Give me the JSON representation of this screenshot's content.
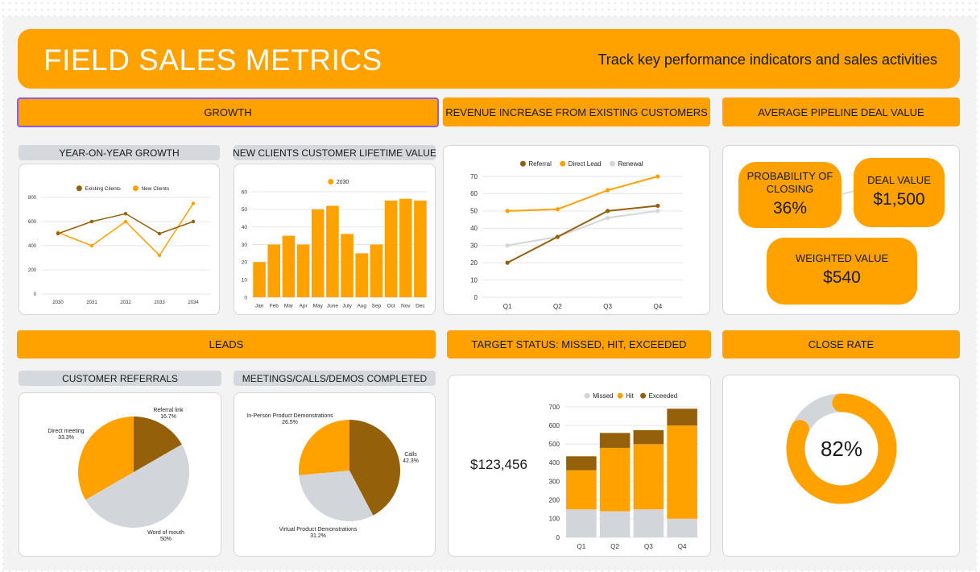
{
  "banner": {
    "title": "FIELD SALES METRICS",
    "subtitle": "Track key performance indicators and sales activities"
  },
  "sections": {
    "growth": "GROWTH",
    "revenue": "REVENUE INCREASE FROM EXISTING CUSTOMERS",
    "pipeline": "AVERAGE PIPELINE DEAL VALUE",
    "leads": "LEADS",
    "target": "TARGET STATUS: MISSED, HIT, EXCEEDED",
    "close": "CLOSE RATE"
  },
  "subsections": {
    "yoy": "YEAR-ON-YEAR GROWTH",
    "clv": "NEW CLIENTS CUSTOMER LIFETIME VALUE",
    "referrals": "CUSTOMER REFERRALS",
    "meetings": "MEETINGS/CALLS/DEMOS COMPLETED"
  },
  "pipeline": {
    "prob_label": "PROBABILITY OF CLOSING",
    "prob_value": "36%",
    "deal_label": "DEAL VALUE",
    "deal_value": "$1,500",
    "weighted_label": "WEIGHTED VALUE",
    "weighted_value": "$540"
  },
  "target_total": "$123,456",
  "close_rate": {
    "label": "82%",
    "value": 0.82
  },
  "colors": {
    "orange": "#ffa200",
    "brown": "#94600a",
    "gray": "#d2d5da",
    "dark_orange": "#f59e0b"
  },
  "chart_data": [
    {
      "id": "yoy",
      "type": "line",
      "categories": [
        "2030",
        "2031",
        "2032",
        "2033",
        "2034"
      ],
      "series": [
        {
          "name": "Existing Clients",
          "values": [
            500,
            600,
            665,
            500,
            600
          ],
          "color": "#94600a"
        },
        {
          "name": "New Clients",
          "values": [
            510,
            400,
            600,
            320,
            750
          ],
          "color": "#ffa200"
        }
      ],
      "yticks": [
        "0",
        "200",
        "400",
        "600",
        "800"
      ],
      "ylim": [
        0,
        800
      ],
      "legend": "top"
    },
    {
      "id": "clv",
      "type": "bar",
      "categories": [
        "Jan",
        "Feb",
        "Mar",
        "Apr",
        "May",
        "June",
        "July",
        "Aug",
        "Sep",
        "Oct",
        "Nov",
        "Dec"
      ],
      "series": [
        {
          "name": "2030",
          "values": [
            20,
            30,
            35,
            30,
            50,
            52,
            36,
            25,
            30,
            55,
            56,
            55
          ],
          "color": "#ffa200"
        }
      ],
      "yticks": [
        "0",
        "10",
        "20",
        "30",
        "40",
        "50",
        "60"
      ],
      "ylim": [
        0,
        60
      ],
      "legend": "top"
    },
    {
      "id": "revenue",
      "type": "line",
      "categories": [
        "Q1",
        "Q2",
        "Q3",
        "Q4"
      ],
      "series": [
        {
          "name": "Referral",
          "values": [
            20,
            35,
            50,
            53
          ],
          "color": "#94600a"
        },
        {
          "name": "Direct Lead",
          "values": [
            50,
            51,
            62,
            70
          ],
          "color": "#ffa200"
        },
        {
          "name": "Renewal",
          "values": [
            30,
            35,
            46,
            50
          ],
          "color": "#d2d5da"
        }
      ],
      "yticks": [
        "0",
        "10",
        "20",
        "30",
        "40",
        "50",
        "60",
        "70"
      ],
      "ylim": [
        0,
        70
      ],
      "legend": "top"
    },
    {
      "id": "referrals",
      "type": "pie",
      "slices": [
        {
          "label": "Referral link",
          "pct": "16.7%",
          "value": 16.7,
          "color": "#94600a"
        },
        {
          "label": "Word of mouth",
          "pct": "50%",
          "value": 50,
          "color": "#d2d5da"
        },
        {
          "label": "Direct meeting",
          "pct": "33.3%",
          "value": 33.3,
          "color": "#ffa200"
        }
      ]
    },
    {
      "id": "meetings",
      "type": "pie",
      "slices": [
        {
          "label": "Calls",
          "pct": "42.3%",
          "value": 42.3,
          "color": "#94600a"
        },
        {
          "label": "Virtual Product Demonstrations",
          "pct": "31.2%",
          "value": 31.2,
          "color": "#d2d5da"
        },
        {
          "label": "In-Person Product Demonstrations",
          "pct": "26.5%",
          "value": 26.5,
          "color": "#ffa200"
        }
      ]
    },
    {
      "id": "target",
      "type": "bar",
      "stacked": true,
      "categories": [
        "Q1",
        "Q2",
        "Q3",
        "Q4"
      ],
      "series": [
        {
          "name": "Missed",
          "values": [
            150,
            140,
            150,
            100
          ],
          "color": "#d2d5da"
        },
        {
          "name": "Hit",
          "values": [
            210,
            340,
            350,
            500
          ],
          "color": "#ffa200"
        },
        {
          "name": "Exceeded",
          "values": [
            75,
            80,
            75,
            90
          ],
          "color": "#94600a"
        }
      ],
      "yticks": [
        "0",
        "100",
        "200",
        "300",
        "400",
        "500",
        "600",
        "700"
      ],
      "ylim": [
        0,
        700
      ],
      "legend": "top"
    }
  ]
}
